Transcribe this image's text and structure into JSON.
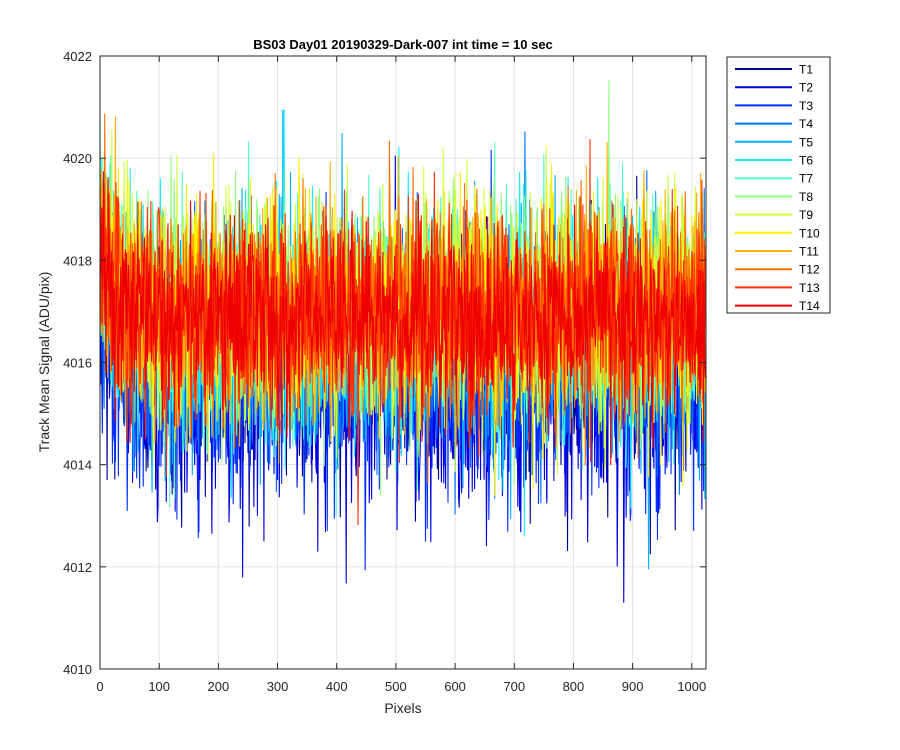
{
  "chart_data": {
    "type": "line",
    "title": "BS03 Day01 20190329-Dark-007 int time = 10 sec",
    "xlabel": "Pixels",
    "ylabel": "Track Mean Signal (ADU/pix)",
    "xlim": [
      0,
      1024
    ],
    "ylim": [
      4010,
      4022
    ],
    "xticks": [
      "0",
      "100",
      "200",
      "300",
      "400",
      "500",
      "600",
      "700",
      "800",
      "900",
      "1000"
    ],
    "yticks": [
      "4010",
      "4012",
      "4014",
      "4016",
      "4018",
      "4020",
      "4022"
    ],
    "grid": true,
    "legend_position": "outside-top-right",
    "n_points": 1024,
    "series": [
      {
        "name": "T1",
        "color": "#00008F",
        "mean": 4016.0,
        "spread": 1.1
      },
      {
        "name": "T2",
        "color": "#0000DF",
        "mean": 4015.6,
        "spread": 1.2
      },
      {
        "name": "T3",
        "color": "#0030FF",
        "mean": 4015.8,
        "spread": 1.2
      },
      {
        "name": "T4",
        "color": "#0070FF",
        "mean": 4016.2,
        "spread": 1.1
      },
      {
        "name": "T5",
        "color": "#00B0FF",
        "mean": 4016.5,
        "spread": 1.1
      },
      {
        "name": "T6",
        "color": "#10EFFF",
        "mean": 4016.8,
        "spread": 1.1
      },
      {
        "name": "T7",
        "color": "#50FFC0",
        "mean": 4016.9,
        "spread": 1.1
      },
      {
        "name": "T8",
        "color": "#90FF80",
        "mean": 4017.0,
        "spread": 1.1
      },
      {
        "name": "T9",
        "color": "#CFFF40",
        "mean": 4017.0,
        "spread": 1.1
      },
      {
        "name": "T10",
        "color": "#FFF000",
        "mean": 4017.1,
        "spread": 1.1
      },
      {
        "name": "T11",
        "color": "#FFB000",
        "mean": 4017.0,
        "spread": 1.0
      },
      {
        "name": "T12",
        "color": "#FF7000",
        "mean": 4017.0,
        "spread": 1.0
      },
      {
        "name": "T13",
        "color": "#FF3000",
        "mean": 4016.9,
        "spread": 1.0
      },
      {
        "name": "T14",
        "color": "#EF0000",
        "mean": 4016.8,
        "spread": 0.9
      }
    ]
  }
}
